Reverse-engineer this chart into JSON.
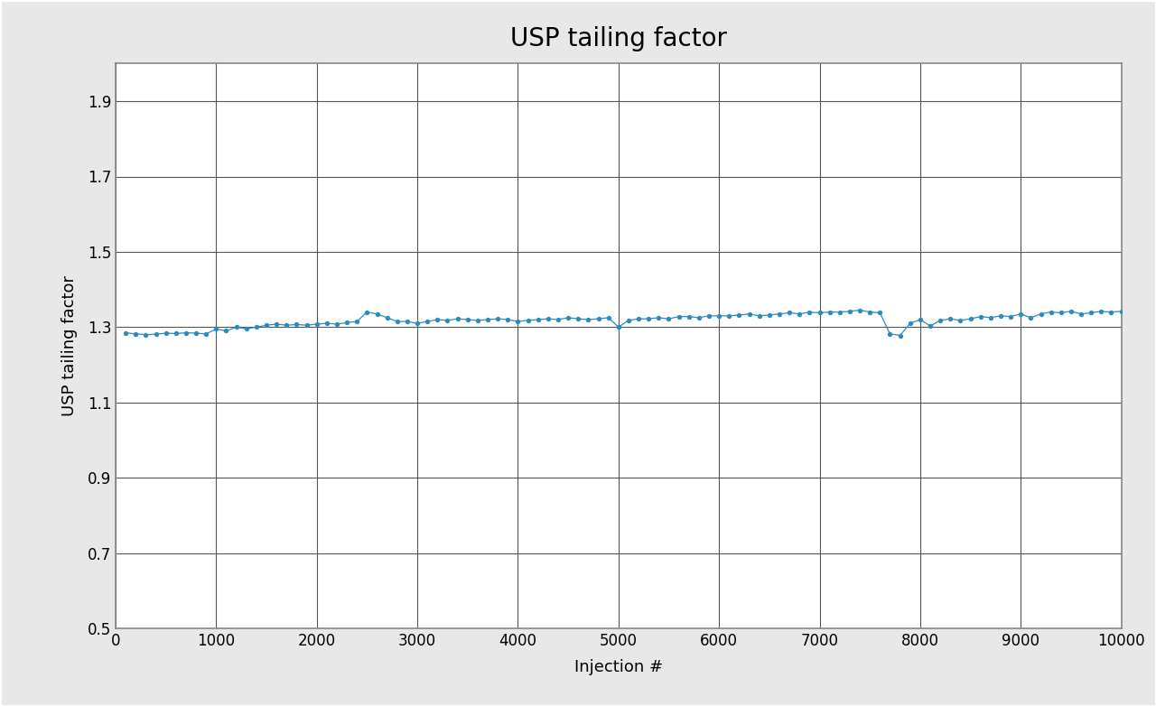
{
  "title": "USP tailing factor",
  "xlabel": "Injection #",
  "ylabel": "USP tailing factor",
  "xlim": [
    0,
    10000
  ],
  "ylim": [
    0.5,
    2.0
  ],
  "yticks": [
    0.5,
    0.7,
    0.9,
    1.1,
    1.3,
    1.5,
    1.7,
    1.9
  ],
  "xticks": [
    0,
    1000,
    2000,
    3000,
    4000,
    5000,
    6000,
    7000,
    8000,
    9000,
    10000
  ],
  "dot_color": "#2e8bc0",
  "line_color": "#2e8bc0",
  "bg_color": "#e8e8e8",
  "plot_bg_color": "#ffffff",
  "grid_color": "#555555",
  "border_color": "#888888",
  "title_fontsize": 20,
  "label_fontsize": 13,
  "tick_fontsize": 12,
  "data_x": [
    100,
    200,
    300,
    400,
    500,
    600,
    700,
    800,
    900,
    1000,
    1100,
    1200,
    1300,
    1400,
    1500,
    1600,
    1700,
    1800,
    1900,
    2000,
    2100,
    2200,
    2300,
    2400,
    2500,
    2600,
    2700,
    2800,
    2900,
    3000,
    3100,
    3200,
    3300,
    3400,
    3500,
    3600,
    3700,
    3800,
    3900,
    4000,
    4100,
    4200,
    4300,
    4400,
    4500,
    4600,
    4700,
    4800,
    4900,
    5000,
    5100,
    5200,
    5300,
    5400,
    5500,
    5600,
    5700,
    5800,
    5900,
    6000,
    6100,
    6200,
    6300,
    6400,
    6500,
    6600,
    6700,
    6800,
    6900,
    7000,
    7100,
    7200,
    7300,
    7400,
    7500,
    7600,
    7700,
    7800,
    7900,
    8000,
    8100,
    8200,
    8300,
    8400,
    8500,
    8600,
    8700,
    8800,
    8900,
    9000,
    9100,
    9200,
    9300,
    9400,
    9500,
    9600,
    9700,
    9800,
    9900,
    10000
  ],
  "data_y": [
    1.285,
    1.282,
    1.28,
    1.281,
    1.284,
    1.283,
    1.285,
    1.284,
    1.282,
    1.295,
    1.29,
    1.3,
    1.295,
    1.3,
    1.305,
    1.308,
    1.305,
    1.307,
    1.305,
    1.308,
    1.31,
    1.308,
    1.312,
    1.315,
    1.34,
    1.335,
    1.325,
    1.315,
    1.315,
    1.31,
    1.315,
    1.32,
    1.318,
    1.322,
    1.32,
    1.318,
    1.32,
    1.322,
    1.32,
    1.315,
    1.318,
    1.32,
    1.322,
    1.32,
    1.325,
    1.322,
    1.32,
    1.322,
    1.325,
    1.3,
    1.318,
    1.322,
    1.322,
    1.325,
    1.322,
    1.328,
    1.328,
    1.325,
    1.33,
    1.33,
    1.33,
    1.332,
    1.335,
    1.33,
    1.332,
    1.335,
    1.338,
    1.335,
    1.34,
    1.338,
    1.34,
    1.34,
    1.342,
    1.345,
    1.34,
    1.338,
    1.282,
    1.278,
    1.31,
    1.32,
    1.303,
    1.318,
    1.322,
    1.318,
    1.322,
    1.328,
    1.325,
    1.33,
    1.328,
    1.335,
    1.325,
    1.335,
    1.34,
    1.338,
    1.342,
    1.335,
    1.338,
    1.342,
    1.34,
    1.342
  ]
}
